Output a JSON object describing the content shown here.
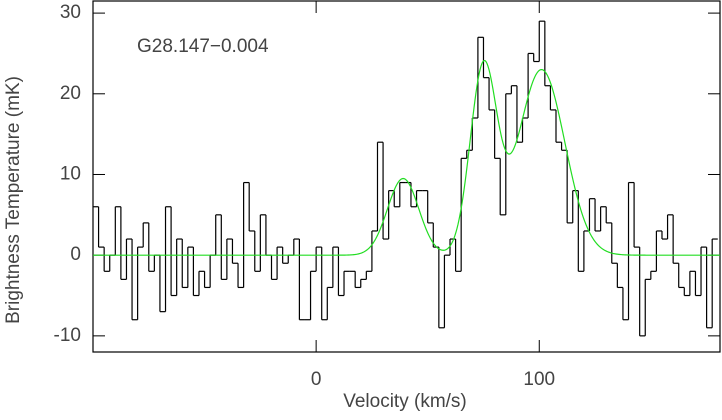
{
  "chart_data": {
    "type": "step",
    "xlabel": "Velocity (km/s)",
    "ylabel": "Brightness Temperature (mK)",
    "annotation": "G28.147−0.004",
    "xlim": [
      -100,
      181
    ],
    "xticks": [
      0,
      100
    ],
    "ylim": [
      -12,
      31.5
    ],
    "yticks": [
      -10,
      0,
      10,
      20,
      30
    ],
    "series": [
      {
        "color": "#000000",
        "x": [
          -98.75,
          -96.25,
          -93.75,
          -91.25,
          -88.75,
          -86.25,
          -83.75,
          -81.25,
          -78.75,
          -76.25,
          -73.75,
          -71.25,
          -68.75,
          -66.25,
          -63.75,
          -61.25,
          -58.75,
          -56.25,
          -53.75,
          -51.25,
          -48.75,
          -46.25,
          -43.75,
          -41.25,
          -38.75,
          -36.25,
          -33.75,
          -31.25,
          -28.75,
          -26.25,
          -23.75,
          -21.25,
          -18.75,
          -16.25,
          -13.75,
          -11.25,
          -8.75,
          -6.25,
          -3.75,
          -1.25,
          1.25,
          3.75,
          6.25,
          8.75,
          11.25,
          13.75,
          16.25,
          18.75,
          21.25,
          23.75,
          26.25,
          28.75,
          31.25,
          33.75,
          36.25,
          38.75,
          41.25,
          43.75,
          46.25,
          48.75,
          51.25,
          53.75,
          56.25,
          58.75,
          61.25,
          63.75,
          66.25,
          68.75,
          71.25,
          73.75,
          76.25,
          78.75,
          81.25,
          83.75,
          86.25,
          88.75,
          91.25,
          93.75,
          96.25,
          98.75,
          101.25,
          103.75,
          106.25,
          108.75,
          111.25,
          113.75,
          116.25,
          118.75,
          121.25,
          123.75,
          126.25,
          128.75,
          131.25,
          133.75,
          136.25,
          138.75,
          141.25,
          143.75,
          146.25,
          148.75,
          151.25,
          153.75,
          156.25,
          158.75,
          161.25,
          163.75,
          166.25,
          168.75,
          171.25,
          173.75,
          176.25,
          178.75
        ],
        "values": [
          6,
          1,
          -2,
          0,
          6,
          -3,
          2,
          -8,
          1,
          4,
          -2,
          0,
          -7,
          6,
          -5,
          2,
          -4,
          1,
          -5,
          -2,
          -4,
          0,
          5,
          -3,
          2,
          -1,
          -4,
          9,
          3,
          -2,
          5,
          0,
          -3,
          1,
          -1,
          0,
          2,
          -8,
          -8,
          -2,
          1,
          -8,
          -4,
          1,
          -5,
          -2,
          -2,
          -4,
          -3,
          -2,
          3,
          14,
          2,
          8,
          6,
          9,
          9,
          6,
          8,
          8,
          4,
          1,
          -9,
          0,
          2,
          -2,
          12,
          13,
          17,
          27,
          22,
          18,
          12,
          5,
          20,
          21,
          14,
          17,
          25,
          24,
          29,
          21,
          18,
          14,
          13,
          4,
          8,
          -2,
          3,
          7,
          3,
          6,
          4,
          -1,
          -4,
          -8,
          9,
          1,
          -10,
          -3,
          -2,
          3,
          2,
          5,
          -1,
          -4,
          -5,
          -2,
          -5,
          1,
          -9,
          2
        ],
        "channel_width": 2.5
      }
    ],
    "fit": {
      "color": "#22dd22",
      "components": [
        {
          "amplitude": 9.5,
          "center": 39,
          "sigma": 7
        },
        {
          "amplitude": 23,
          "center": 75,
          "sigma": 6
        },
        {
          "amplitude": 23,
          "center": 101,
          "sigma": 10.5
        }
      ]
    }
  }
}
